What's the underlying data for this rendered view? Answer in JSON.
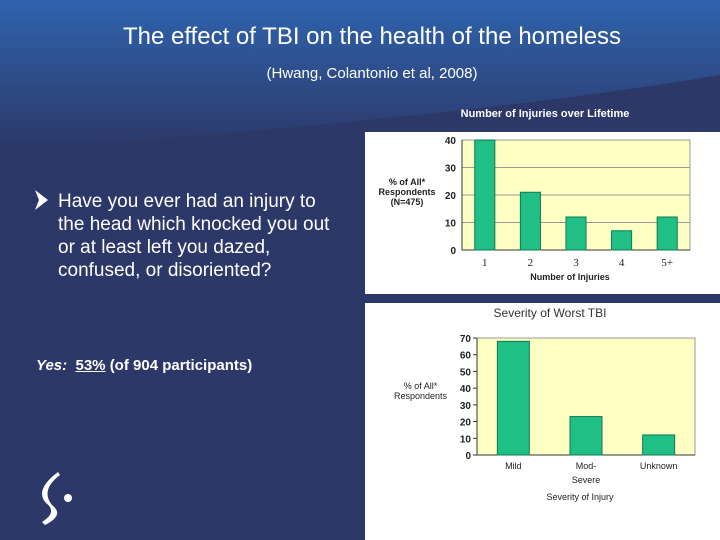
{
  "slide": {
    "title": "The effect of TBI on the health of the homeless",
    "subtitle": "(Hwang, Colantonio et al, 2008)",
    "bullet": "Have you ever had an injury to the head which knocked you out or at least left you dazed, confused, or disoriented?",
    "yes_label": "Yes:",
    "yes_percent": "53%",
    "yes_detail": "(of 904 participants)"
  },
  "chart_data": [
    {
      "type": "bar",
      "title": "Number of Injuries over Lifetime",
      "y_label": "% of All* Respondents (N=475)",
      "x_label": "Number of Injuries",
      "categories": [
        "1",
        "2",
        "3",
        "4",
        "5+"
      ],
      "values": [
        40,
        21,
        12,
        7,
        12
      ],
      "color": "#1fbf86",
      "ylim": [
        0,
        40
      ],
      "yticks": [
        0,
        10,
        20,
        30,
        40
      ],
      "grid": true
    },
    {
      "type": "bar",
      "title": "Severity of Worst TBI",
      "y_label": "% of All* Respondents",
      "x_label": "Severity of Injury",
      "categories": [
        "Mild",
        "Mod-Severe",
        "Unknown"
      ],
      "values": [
        68,
        23,
        12
      ],
      "color": "#1fbf86",
      "ylim": [
        0,
        70
      ],
      "yticks": [
        0,
        10,
        20,
        30,
        40,
        50,
        60,
        70
      ],
      "grid": false
    }
  ]
}
